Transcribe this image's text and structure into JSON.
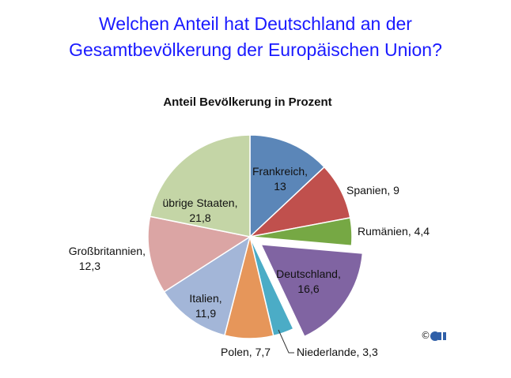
{
  "header": {
    "title_line1": "Welchen Anteil hat Deutschland an der",
    "title_line2": "Gesamtbevölkerung der Europäischen Union?"
  },
  "footer": {
    "copyright": "©"
  },
  "chart_data": {
    "type": "pie",
    "title": "Anteil Bevölkerung in Prozent",
    "unit": "Prozent",
    "slices": [
      {
        "label": "Frankreich",
        "value": 13,
        "value_text": "13",
        "color": "#5b86b8",
        "exploded": false
      },
      {
        "label": "Spanien",
        "value": 9,
        "value_text": "9",
        "color": "#c0504d",
        "exploded": false
      },
      {
        "label": "Rumänien",
        "value": 4.4,
        "value_text": "4,4",
        "color": "#76a844",
        "exploded": false
      },
      {
        "label": "Deutschland",
        "value": 16.6,
        "value_text": "16,6",
        "color": "#8064a2",
        "exploded": true
      },
      {
        "label": "Niederlande",
        "value": 3.3,
        "value_text": "3,3",
        "color": "#4bacc6",
        "exploded": false
      },
      {
        "label": "Polen",
        "value": 7.7,
        "value_text": "7,7",
        "color": "#e6965a",
        "exploded": false
      },
      {
        "label": "Italien",
        "value": 11.9,
        "value_text": "11,9",
        "color": "#a3b6d8",
        "exploded": false
      },
      {
        "label": "Großbritannien",
        "value": 12.3,
        "value_text": "12,3",
        "color": "#dba5a4",
        "exploded": false
      },
      {
        "label": "übrige Staaten",
        "value": 21.8,
        "value_text": "21,8",
        "color": "#c4d5a6",
        "exploded": false
      }
    ]
  }
}
